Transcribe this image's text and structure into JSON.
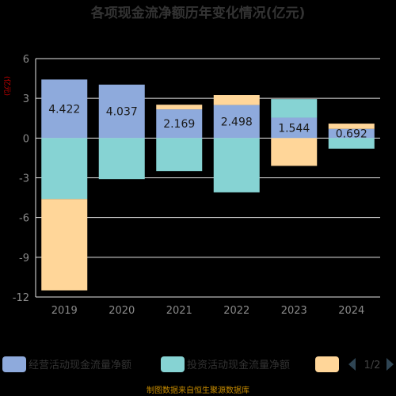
{
  "chart_data": {
    "type": "bar",
    "stacked": true,
    "title": "各项现金流净额历年变化情况(亿元)",
    "unit_label": "(亿元)",
    "categories": [
      "2019",
      "2020",
      "2021",
      "2022",
      "2023",
      "2024"
    ],
    "y_ticks": [
      "6",
      "3",
      "0",
      "-3",
      "-6",
      "-9",
      "-12"
    ],
    "ylim": [
      -12,
      6
    ],
    "grid": true,
    "legend_position": "bottom",
    "data_labels": [
      "4.422",
      "4.037",
      "2.169",
      "2.498",
      "1.544",
      "0.692"
    ],
    "series": [
      {
        "name": "经营活动现金流量净额",
        "color": "#8eaadc",
        "values": [
          4.422,
          4.037,
          2.169,
          2.498,
          1.544,
          0.692
        ]
      },
      {
        "name": "投资活动现金流量净额",
        "color": "#86d3d3",
        "values": [
          -4.6,
          -3.1,
          -2.5,
          -4.1,
          1.4,
          -0.8
        ]
      },
      {
        "name": "",
        "color": "#ffd699",
        "values": [
          -6.9,
          0,
          0.35,
          0.75,
          -2.1,
          0.4
        ]
      }
    ],
    "legend_pager": "1/2",
    "source": "制图数据来自恒生聚源数据库"
  }
}
